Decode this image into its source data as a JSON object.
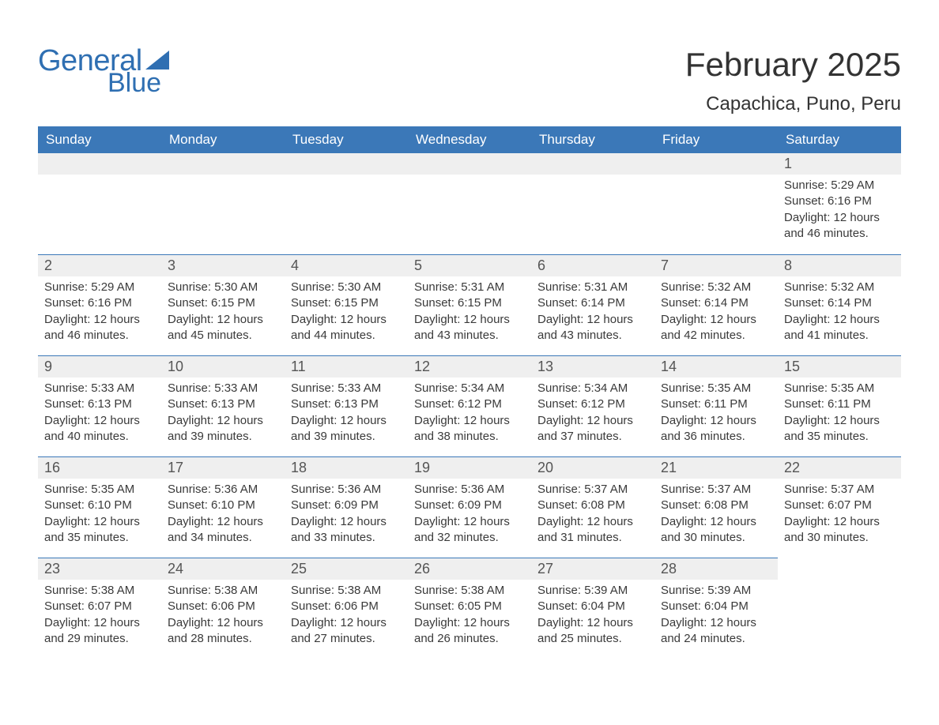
{
  "logo": {
    "word1": "General",
    "word2": "Blue",
    "brand_color": "#2f6fb2"
  },
  "title": "February 2025",
  "location": "Capachica, Puno, Peru",
  "colors": {
    "header_bg": "#3b78b8",
    "header_text": "#ffffff",
    "daybar_bg": "#efefef",
    "daybar_border": "#3b78b8",
    "body_text": "#3a3a3a",
    "page_bg": "#ffffff"
  },
  "typography": {
    "title_fontsize": 42,
    "location_fontsize": 24,
    "header_fontsize": 17,
    "daynum_fontsize": 18,
    "body_fontsize": 15,
    "font_family": "Arial"
  },
  "weekday_labels": [
    "Sunday",
    "Monday",
    "Tuesday",
    "Wednesday",
    "Thursday",
    "Friday",
    "Saturday"
  ],
  "weeks": [
    [
      null,
      null,
      null,
      null,
      null,
      null,
      {
        "d": "1",
        "sr": "Sunrise: 5:29 AM",
        "ss": "Sunset: 6:16 PM",
        "dl1": "Daylight: 12 hours",
        "dl2": "and 46 minutes."
      }
    ],
    [
      {
        "d": "2",
        "sr": "Sunrise: 5:29 AM",
        "ss": "Sunset: 6:16 PM",
        "dl1": "Daylight: 12 hours",
        "dl2": "and 46 minutes."
      },
      {
        "d": "3",
        "sr": "Sunrise: 5:30 AM",
        "ss": "Sunset: 6:15 PM",
        "dl1": "Daylight: 12 hours",
        "dl2": "and 45 minutes."
      },
      {
        "d": "4",
        "sr": "Sunrise: 5:30 AM",
        "ss": "Sunset: 6:15 PM",
        "dl1": "Daylight: 12 hours",
        "dl2": "and 44 minutes."
      },
      {
        "d": "5",
        "sr": "Sunrise: 5:31 AM",
        "ss": "Sunset: 6:15 PM",
        "dl1": "Daylight: 12 hours",
        "dl2": "and 43 minutes."
      },
      {
        "d": "6",
        "sr": "Sunrise: 5:31 AM",
        "ss": "Sunset: 6:14 PM",
        "dl1": "Daylight: 12 hours",
        "dl2": "and 43 minutes."
      },
      {
        "d": "7",
        "sr": "Sunrise: 5:32 AM",
        "ss": "Sunset: 6:14 PM",
        "dl1": "Daylight: 12 hours",
        "dl2": "and 42 minutes."
      },
      {
        "d": "8",
        "sr": "Sunrise: 5:32 AM",
        "ss": "Sunset: 6:14 PM",
        "dl1": "Daylight: 12 hours",
        "dl2": "and 41 minutes."
      }
    ],
    [
      {
        "d": "9",
        "sr": "Sunrise: 5:33 AM",
        "ss": "Sunset: 6:13 PM",
        "dl1": "Daylight: 12 hours",
        "dl2": "and 40 minutes."
      },
      {
        "d": "10",
        "sr": "Sunrise: 5:33 AM",
        "ss": "Sunset: 6:13 PM",
        "dl1": "Daylight: 12 hours",
        "dl2": "and 39 minutes."
      },
      {
        "d": "11",
        "sr": "Sunrise: 5:33 AM",
        "ss": "Sunset: 6:13 PM",
        "dl1": "Daylight: 12 hours",
        "dl2": "and 39 minutes."
      },
      {
        "d": "12",
        "sr": "Sunrise: 5:34 AM",
        "ss": "Sunset: 6:12 PM",
        "dl1": "Daylight: 12 hours",
        "dl2": "and 38 minutes."
      },
      {
        "d": "13",
        "sr": "Sunrise: 5:34 AM",
        "ss": "Sunset: 6:12 PM",
        "dl1": "Daylight: 12 hours",
        "dl2": "and 37 minutes."
      },
      {
        "d": "14",
        "sr": "Sunrise: 5:35 AM",
        "ss": "Sunset: 6:11 PM",
        "dl1": "Daylight: 12 hours",
        "dl2": "and 36 minutes."
      },
      {
        "d": "15",
        "sr": "Sunrise: 5:35 AM",
        "ss": "Sunset: 6:11 PM",
        "dl1": "Daylight: 12 hours",
        "dl2": "and 35 minutes."
      }
    ],
    [
      {
        "d": "16",
        "sr": "Sunrise: 5:35 AM",
        "ss": "Sunset: 6:10 PM",
        "dl1": "Daylight: 12 hours",
        "dl2": "and 35 minutes."
      },
      {
        "d": "17",
        "sr": "Sunrise: 5:36 AM",
        "ss": "Sunset: 6:10 PM",
        "dl1": "Daylight: 12 hours",
        "dl2": "and 34 minutes."
      },
      {
        "d": "18",
        "sr": "Sunrise: 5:36 AM",
        "ss": "Sunset: 6:09 PM",
        "dl1": "Daylight: 12 hours",
        "dl2": "and 33 minutes."
      },
      {
        "d": "19",
        "sr": "Sunrise: 5:36 AM",
        "ss": "Sunset: 6:09 PM",
        "dl1": "Daylight: 12 hours",
        "dl2": "and 32 minutes."
      },
      {
        "d": "20",
        "sr": "Sunrise: 5:37 AM",
        "ss": "Sunset: 6:08 PM",
        "dl1": "Daylight: 12 hours",
        "dl2": "and 31 minutes."
      },
      {
        "d": "21",
        "sr": "Sunrise: 5:37 AM",
        "ss": "Sunset: 6:08 PM",
        "dl1": "Daylight: 12 hours",
        "dl2": "and 30 minutes."
      },
      {
        "d": "22",
        "sr": "Sunrise: 5:37 AM",
        "ss": "Sunset: 6:07 PM",
        "dl1": "Daylight: 12 hours",
        "dl2": "and 30 minutes."
      }
    ],
    [
      {
        "d": "23",
        "sr": "Sunrise: 5:38 AM",
        "ss": "Sunset: 6:07 PM",
        "dl1": "Daylight: 12 hours",
        "dl2": "and 29 minutes."
      },
      {
        "d": "24",
        "sr": "Sunrise: 5:38 AM",
        "ss": "Sunset: 6:06 PM",
        "dl1": "Daylight: 12 hours",
        "dl2": "and 28 minutes."
      },
      {
        "d": "25",
        "sr": "Sunrise: 5:38 AM",
        "ss": "Sunset: 6:06 PM",
        "dl1": "Daylight: 12 hours",
        "dl2": "and 27 minutes."
      },
      {
        "d": "26",
        "sr": "Sunrise: 5:38 AM",
        "ss": "Sunset: 6:05 PM",
        "dl1": "Daylight: 12 hours",
        "dl2": "and 26 minutes."
      },
      {
        "d": "27",
        "sr": "Sunrise: 5:39 AM",
        "ss": "Sunset: 6:04 PM",
        "dl1": "Daylight: 12 hours",
        "dl2": "and 25 minutes."
      },
      {
        "d": "28",
        "sr": "Sunrise: 5:39 AM",
        "ss": "Sunset: 6:04 PM",
        "dl1": "Daylight: 12 hours",
        "dl2": "and 24 minutes."
      },
      null
    ]
  ]
}
